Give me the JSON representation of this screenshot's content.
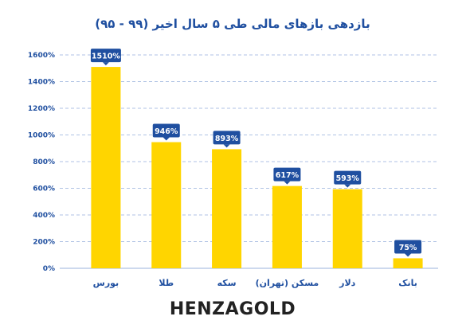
{
  "colors": {
    "bar": "#FFD500",
    "accent": "#1F4FA0",
    "label_bg": "#1F4FA0",
    "label_text": "#FFFFFF",
    "grid": "#AFC2E4",
    "brand": "#222222"
  },
  "brand": "HENZAGOLD",
  "chart_data": {
    "type": "bar",
    "title": "بازدهی بازهای مالی طی ۵ سال اخیر (۹۹ - ۹۵)",
    "xlabel": "",
    "ylabel": "",
    "categories": [
      "بورس",
      "طلا",
      "سکه",
      "مسکن (تهران)",
      "دلار",
      "بانک"
    ],
    "values": [
      1510,
      946,
      893,
      617,
      593,
      75
    ],
    "value_labels": [
      "1510%",
      "946%",
      "893%",
      "617%",
      "593%",
      "75%"
    ],
    "ylim": [
      0,
      1600
    ],
    "yticks": [
      "0%",
      "200%",
      "400%",
      "600%",
      "800%",
      "1000%",
      "1200%",
      "1400%",
      "1600%"
    ],
    "grid": true,
    "grid_style": "dashed-horizontal"
  }
}
